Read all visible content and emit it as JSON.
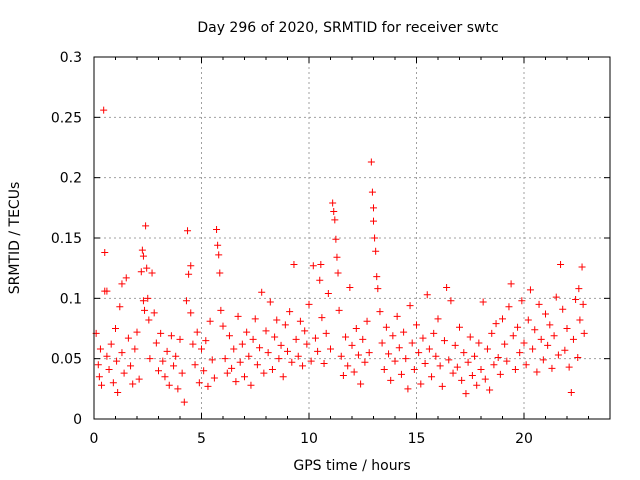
{
  "chart_data": {
    "type": "scatter",
    "title": "Day 296 of 2020, SRMTID for receiver swtc",
    "xlabel": "GPS time / hours",
    "ylabel": "SRMTID / TECUs",
    "xlim": [
      0,
      24
    ],
    "ylim": [
      0,
      0.3
    ],
    "xticks": [
      0,
      5,
      10,
      15,
      20
    ],
    "xtick_labels": [
      "0",
      "5",
      "10",
      "15",
      "20"
    ],
    "yticks": [
      0,
      0.05,
      0.1,
      0.15,
      0.2,
      0.25,
      0.3
    ],
    "ytick_labels": [
      "0",
      "0.05",
      "0.1",
      "0.15",
      "0.2",
      "0.25",
      "0.3"
    ],
    "grid": true,
    "marker": "plus",
    "color": "#ff0000",
    "series": [
      {
        "name": "SRMTID",
        "points": [
          [
            0.1,
            0.071
          ],
          [
            0.2,
            0.045
          ],
          [
            0.25,
            0.035
          ],
          [
            0.3,
            0.058
          ],
          [
            0.35,
            0.028
          ],
          [
            0.45,
            0.256
          ],
          [
            0.5,
            0.138
          ],
          [
            0.5,
            0.106
          ],
          [
            0.6,
            0.106
          ],
          [
            0.6,
            0.052
          ],
          [
            0.7,
            0.041
          ],
          [
            0.8,
            0.062
          ],
          [
            0.9,
            0.03
          ],
          [
            1.0,
            0.075
          ],
          [
            1.05,
            0.048
          ],
          [
            1.1,
            0.022
          ],
          [
            1.2,
            0.093
          ],
          [
            1.3,
            0.112
          ],
          [
            1.3,
            0.055
          ],
          [
            1.4,
            0.038
          ],
          [
            1.5,
            0.117
          ],
          [
            1.6,
            0.067
          ],
          [
            1.7,
            0.044
          ],
          [
            1.8,
            0.029
          ],
          [
            1.9,
            0.058
          ],
          [
            2.0,
            0.072
          ],
          [
            2.1,
            0.033
          ],
          [
            2.2,
            0.122
          ],
          [
            2.25,
            0.14
          ],
          [
            2.3,
            0.135
          ],
          [
            2.3,
            0.098
          ],
          [
            2.35,
            0.09
          ],
          [
            2.4,
            0.16
          ],
          [
            2.45,
            0.125
          ],
          [
            2.5,
            0.1
          ],
          [
            2.55,
            0.082
          ],
          [
            2.6,
            0.05
          ],
          [
            2.7,
            0.121
          ],
          [
            2.8,
            0.088
          ],
          [
            2.9,
            0.063
          ],
          [
            3.0,
            0.04
          ],
          [
            3.1,
            0.071
          ],
          [
            3.2,
            0.048
          ],
          [
            3.3,
            0.035
          ],
          [
            3.4,
            0.056
          ],
          [
            3.5,
            0.028
          ],
          [
            3.6,
            0.069
          ],
          [
            3.7,
            0.044
          ],
          [
            3.8,
            0.052
          ],
          [
            3.9,
            0.025
          ],
          [
            4.0,
            0.066
          ],
          [
            4.1,
            0.038
          ],
          [
            4.2,
            0.014
          ],
          [
            4.3,
            0.098
          ],
          [
            4.35,
            0.156
          ],
          [
            4.4,
            0.12
          ],
          [
            4.5,
            0.127
          ],
          [
            4.5,
            0.088
          ],
          [
            4.6,
            0.062
          ],
          [
            4.7,
            0.045
          ],
          [
            4.8,
            0.072
          ],
          [
            4.9,
            0.03
          ],
          [
            5.0,
            0.058
          ],
          [
            5.1,
            0.04
          ],
          [
            5.2,
            0.065
          ],
          [
            5.3,
            0.027
          ],
          [
            5.4,
            0.081
          ],
          [
            5.5,
            0.049
          ],
          [
            5.6,
            0.034
          ],
          [
            5.7,
            0.157
          ],
          [
            5.75,
            0.144
          ],
          [
            5.8,
            0.136
          ],
          [
            5.85,
            0.121
          ],
          [
            5.9,
            0.09
          ],
          [
            6.0,
            0.077
          ],
          [
            6.1,
            0.05
          ],
          [
            6.2,
            0.038
          ],
          [
            6.3,
            0.069
          ],
          [
            6.4,
            0.042
          ],
          [
            6.5,
            0.058
          ],
          [
            6.6,
            0.031
          ],
          [
            6.7,
            0.085
          ],
          [
            6.8,
            0.047
          ],
          [
            6.9,
            0.062
          ],
          [
            7.0,
            0.035
          ],
          [
            7.1,
            0.072
          ],
          [
            7.2,
            0.052
          ],
          [
            7.3,
            0.028
          ],
          [
            7.4,
            0.066
          ],
          [
            7.5,
            0.083
          ],
          [
            7.6,
            0.045
          ],
          [
            7.7,
            0.059
          ],
          [
            7.8,
            0.105
          ],
          [
            7.9,
            0.038
          ],
          [
            8.0,
            0.073
          ],
          [
            8.1,
            0.055
          ],
          [
            8.2,
            0.097
          ],
          [
            8.3,
            0.041
          ],
          [
            8.4,
            0.068
          ],
          [
            8.5,
            0.082
          ],
          [
            8.6,
            0.05
          ],
          [
            8.7,
            0.061
          ],
          [
            8.8,
            0.035
          ],
          [
            8.9,
            0.078
          ],
          [
            9.0,
            0.056
          ],
          [
            9.1,
            0.089
          ],
          [
            9.2,
            0.047
          ],
          [
            9.3,
            0.128
          ],
          [
            9.4,
            0.066
          ],
          [
            9.5,
            0.052
          ],
          [
            9.6,
            0.081
          ],
          [
            9.7,
            0.044
          ],
          [
            9.8,
            0.073
          ],
          [
            9.9,
            0.062
          ],
          [
            10.0,
            0.095
          ],
          [
            10.1,
            0.048
          ],
          [
            10.2,
            0.127
          ],
          [
            10.3,
            0.067
          ],
          [
            10.4,
            0.056
          ],
          [
            10.5,
            0.115
          ],
          [
            10.55,
            0.128
          ],
          [
            10.6,
            0.084
          ],
          [
            10.7,
            0.046
          ],
          [
            10.8,
            0.071
          ],
          [
            10.9,
            0.104
          ],
          [
            11.0,
            0.058
          ],
          [
            11.1,
            0.179
          ],
          [
            11.15,
            0.172
          ],
          [
            11.2,
            0.165
          ],
          [
            11.25,
            0.149
          ],
          [
            11.3,
            0.134
          ],
          [
            11.35,
            0.121
          ],
          [
            11.4,
            0.09
          ],
          [
            11.5,
            0.052
          ],
          [
            11.6,
            0.036
          ],
          [
            11.7,
            0.068
          ],
          [
            11.8,
            0.044
          ],
          [
            11.9,
            0.109
          ],
          [
            12.0,
            0.061
          ],
          [
            12.1,
            0.039
          ],
          [
            12.2,
            0.075
          ],
          [
            12.3,
            0.053
          ],
          [
            12.4,
            0.029
          ],
          [
            12.5,
            0.066
          ],
          [
            12.6,
            0.047
          ],
          [
            12.7,
            0.081
          ],
          [
            12.8,
            0.055
          ],
          [
            12.9,
            0.213
          ],
          [
            12.95,
            0.188
          ],
          [
            13.0,
            0.175
          ],
          [
            13.0,
            0.164
          ],
          [
            13.05,
            0.15
          ],
          [
            13.1,
            0.139
          ],
          [
            13.15,
            0.118
          ],
          [
            13.2,
            0.108
          ],
          [
            13.3,
            0.089
          ],
          [
            13.4,
            0.063
          ],
          [
            13.5,
            0.041
          ],
          [
            13.6,
            0.076
          ],
          [
            13.7,
            0.054
          ],
          [
            13.8,
            0.032
          ],
          [
            13.9,
            0.069
          ],
          [
            14.0,
            0.048
          ],
          [
            14.1,
            0.085
          ],
          [
            14.2,
            0.059
          ],
          [
            14.3,
            0.037
          ],
          [
            14.4,
            0.072
          ],
          [
            14.5,
            0.05
          ],
          [
            14.6,
            0.025
          ],
          [
            14.7,
            0.094
          ],
          [
            14.8,
            0.063
          ],
          [
            14.9,
            0.041
          ],
          [
            15.0,
            0.078
          ],
          [
            15.1,
            0.055
          ],
          [
            15.2,
            0.029
          ],
          [
            15.3,
            0.067
          ],
          [
            15.4,
            0.046
          ],
          [
            15.5,
            0.103
          ],
          [
            15.6,
            0.058
          ],
          [
            15.7,
            0.035
          ],
          [
            15.8,
            0.071
          ],
          [
            15.9,
            0.052
          ],
          [
            16.0,
            0.083
          ],
          [
            16.1,
            0.044
          ],
          [
            16.2,
            0.027
          ],
          [
            16.3,
            0.065
          ],
          [
            16.4,
            0.109
          ],
          [
            16.5,
            0.049
          ],
          [
            16.6,
            0.098
          ],
          [
            16.7,
            0.038
          ],
          [
            16.8,
            0.061
          ],
          [
            16.9,
            0.043
          ],
          [
            17.0,
            0.076
          ],
          [
            17.1,
            0.032
          ],
          [
            17.2,
            0.055
          ],
          [
            17.3,
            0.021
          ],
          [
            17.4,
            0.047
          ],
          [
            17.5,
            0.068
          ],
          [
            17.6,
            0.036
          ],
          [
            17.7,
            0.052
          ],
          [
            17.8,
            0.028
          ],
          [
            17.9,
            0.063
          ],
          [
            18.0,
            0.041
          ],
          [
            18.1,
            0.097
          ],
          [
            18.2,
            0.033
          ],
          [
            18.3,
            0.058
          ],
          [
            18.4,
            0.024
          ],
          [
            18.5,
            0.071
          ],
          [
            18.6,
            0.045
          ],
          [
            18.7,
            0.079
          ],
          [
            18.8,
            0.051
          ],
          [
            18.9,
            0.037
          ],
          [
            19.0,
            0.083
          ],
          [
            19.1,
            0.062
          ],
          [
            19.2,
            0.048
          ],
          [
            19.3,
            0.093
          ],
          [
            19.4,
            0.112
          ],
          [
            19.5,
            0.069
          ],
          [
            19.6,
            0.041
          ],
          [
            19.7,
            0.076
          ],
          [
            19.8,
            0.055
          ],
          [
            19.9,
            0.098
          ],
          [
            20.0,
            0.063
          ],
          [
            20.1,
            0.045
          ],
          [
            20.2,
            0.082
          ],
          [
            20.3,
            0.107
          ],
          [
            20.4,
            0.058
          ],
          [
            20.5,
            0.074
          ],
          [
            20.6,
            0.039
          ],
          [
            20.7,
            0.095
          ],
          [
            20.8,
            0.066
          ],
          [
            20.9,
            0.049
          ],
          [
            21.0,
            0.087
          ],
          [
            21.1,
            0.061
          ],
          [
            21.2,
            0.078
          ],
          [
            21.3,
            0.042
          ],
          [
            21.4,
            0.069
          ],
          [
            21.5,
            0.101
          ],
          [
            21.6,
            0.053
          ],
          [
            21.7,
            0.128
          ],
          [
            21.8,
            0.091
          ],
          [
            21.9,
            0.057
          ],
          [
            22.0,
            0.075
          ],
          [
            22.1,
            0.043
          ],
          [
            22.2,
            0.022
          ],
          [
            22.3,
            0.066
          ],
          [
            22.4,
            0.099
          ],
          [
            22.5,
            0.051
          ],
          [
            22.55,
            0.108
          ],
          [
            22.6,
            0.082
          ],
          [
            22.7,
            0.126
          ],
          [
            22.75,
            0.095
          ],
          [
            22.8,
            0.071
          ]
        ]
      }
    ]
  }
}
